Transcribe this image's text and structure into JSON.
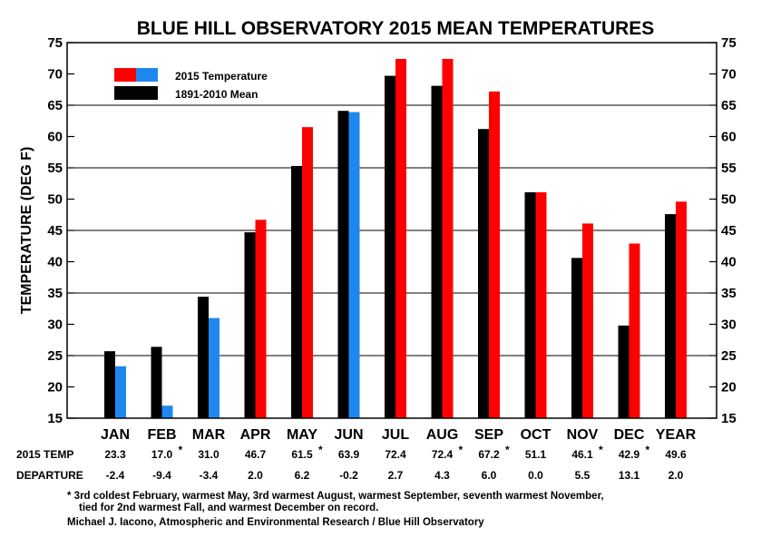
{
  "chart_data": {
    "type": "bar",
    "title": "BLUE HILL OBSERVATORY 2015 MEAN TEMPERATURES",
    "ylabel": "TEMPERATURE (DEG F)",
    "ylim": [
      15,
      75
    ],
    "yticks": [
      15,
      20,
      25,
      30,
      35,
      40,
      45,
      50,
      55,
      60,
      65,
      70,
      75
    ],
    "gridlines_at": [
      25,
      35,
      45,
      55,
      65
    ],
    "categories": [
      "JAN",
      "FEB",
      "MAR",
      "APR",
      "MAY",
      "JUN",
      "JUL",
      "AUG",
      "SEP",
      "OCT",
      "NOV",
      "DEC",
      "YEAR"
    ],
    "series": [
      {
        "name": "1891-2010 Mean",
        "color": "#000000",
        "values": [
          25.7,
          26.4,
          34.4,
          44.7,
          55.3,
          64.1,
          69.7,
          68.1,
          61.2,
          51.1,
          40.6,
          29.8,
          47.6
        ]
      },
      {
        "name": "2015 Temperature",
        "color_above": "#ff0000",
        "color_below": "#1e88f0",
        "values": [
          23.3,
          17.0,
          31.0,
          46.7,
          61.5,
          63.9,
          72.4,
          72.4,
          67.2,
          51.1,
          46.1,
          42.9,
          49.6
        ]
      }
    ],
    "legend": [
      {
        "label": "2015 Temperature",
        "colors": [
          "#ff0000",
          "#1e88f0"
        ]
      },
      {
        "label": "1891-2010 Mean",
        "colors": [
          "#000000"
        ]
      }
    ],
    "legend_position": "top-left",
    "table": {
      "temp_label": "2015 TEMP",
      "departure_label": "DEPARTURE",
      "temps": [
        "23.3",
        "17.0",
        "31.0",
        "46.7",
        "61.5",
        "63.9",
        "72.4",
        "72.4",
        "67.2",
        "51.1",
        "46.1",
        "42.9",
        "49.6"
      ],
      "starred": [
        false,
        true,
        false,
        false,
        true,
        false,
        false,
        true,
        true,
        false,
        true,
        true,
        false
      ],
      "departures": [
        "-2.4",
        "-9.4",
        "-3.4",
        "2.0",
        "6.2",
        "-0.2",
        "2.7",
        "4.3",
        "6.0",
        "0.0",
        "5.5",
        "13.1",
        "2.0"
      ]
    },
    "footnote_line1": "* 3rd coldest February, warmest May, 3rd warmest August, warmest September, seventh warmest November,",
    "footnote_line2": "tied for 2nd warmest Fall, and warmest December on record.",
    "credit": "Michael J. Iacono, Atmospheric and Environmental Research / Blue Hill Observatory"
  }
}
